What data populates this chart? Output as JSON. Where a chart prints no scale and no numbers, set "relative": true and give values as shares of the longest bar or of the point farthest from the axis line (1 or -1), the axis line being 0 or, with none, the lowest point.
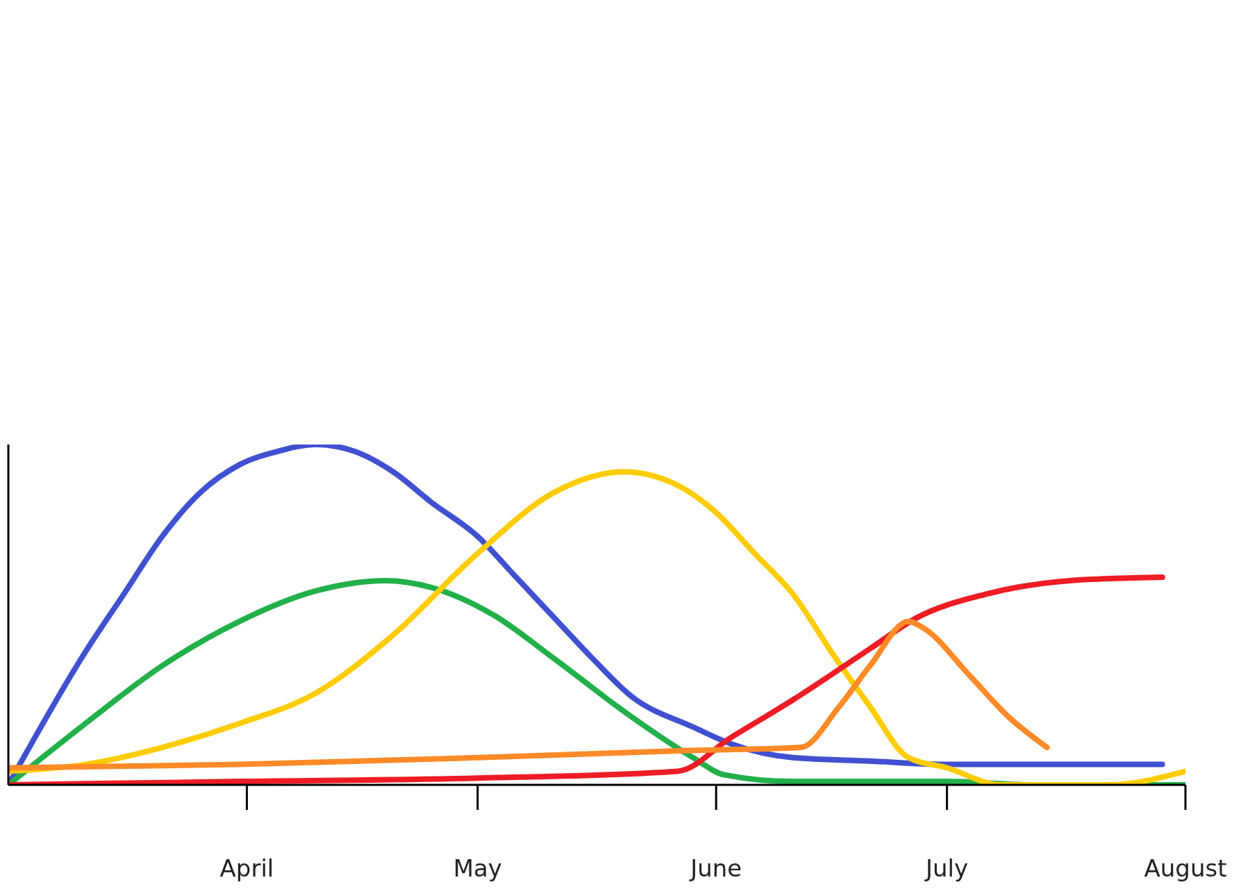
{
  "chart_data": {
    "type": "line",
    "relative": true,
    "xlim": [
      "--03-01",
      "--08-01"
    ],
    "xticks": [
      {
        "value": "--04-01",
        "label": "April"
      },
      {
        "value": "--05-01",
        "label": "May"
      },
      {
        "value": "--06-01",
        "label": "June"
      },
      {
        "value": "--07-01",
        "label": "July"
      },
      {
        "value": "--08-01",
        "label": "August"
      }
    ],
    "marker": "none",
    "line_style": "solid",
    "series": [
      {
        "color": "#4050d0",
        "x": [
          "--03-01",
          "--03-11",
          "--03-16",
          "--03-21",
          "--03-26",
          "--03-31",
          "--04-05",
          "--04-10",
          "--04-15",
          "--04-20",
          "--04-25",
          "--05-01",
          "--05-06",
          "--05-11",
          "--05-16",
          "--05-21",
          "--05-29",
          "--06-03",
          "--06-11",
          "--06-21",
          "--07-01",
          "--07-29"
        ],
        "values": [
          0,
          0.39,
          0.56,
          0.73,
          0.86,
          0.94,
          0.98,
          1.0,
          0.98,
          0.92,
          0.83,
          0.73,
          0.61,
          0.49,
          0.37,
          0.26,
          0.17,
          0.12,
          0.08,
          0.07,
          0.06,
          0.06
        ]
      },
      {
        "color": "#22b04a",
        "x": [
          "--03-01",
          "--03-11",
          "--03-21",
          "--03-31",
          "--04-10",
          "--04-19",
          "--04-25",
          "--05-03",
          "--05-11",
          "--05-21",
          "--05-29",
          "--06-02",
          "--06-11",
          "--07-01",
          "--07-12",
          "--08-01"
        ],
        "values": [
          0,
          0.18,
          0.35,
          0.48,
          0.57,
          0.6,
          0.58,
          0.5,
          0.37,
          0.2,
          0.08,
          0.03,
          0.01,
          0.01,
          0,
          0
        ]
      },
      {
        "color": "#ffcc00",
        "x": [
          "--03-01",
          "--03-11",
          "--03-21",
          "--03-31",
          "--04-10",
          "--04-20",
          "--05-01",
          "--05-11",
          "--05-20",
          "--05-27",
          "--06-01",
          "--06-06",
          "--06-11",
          "--06-16",
          "--06-21",
          "--06-26",
          "--07-01",
          "--07-08",
          "--07-22",
          "--08-01"
        ],
        "values": [
          0.04,
          0.06,
          0.11,
          0.18,
          0.27,
          0.44,
          0.68,
          0.86,
          0.92,
          0.88,
          0.8,
          0.68,
          0.56,
          0.39,
          0.23,
          0.08,
          0.05,
          0,
          0,
          0.04
        ]
      },
      {
        "color": "#ee1c24",
        "x": [
          "--03-01",
          "--03-31",
          "--05-01",
          "--05-27",
          "--06-03",
          "--06-11",
          "--06-21",
          "--06-27",
          "--07-06",
          "--07-17",
          "--07-29"
        ],
        "values": [
          0,
          0.01,
          0.02,
          0.04,
          0.14,
          0.25,
          0.4,
          0.49,
          0.56,
          0.6,
          0.61
        ]
      },
      {
        "color": "#ff8a28",
        "x": [
          "--03-01",
          "--03-31",
          "--05-01",
          "--05-27",
          "--06-12",
          "--06-17",
          "--06-21",
          "--06-26",
          "--06-28",
          "--07-04",
          "--07-09",
          "--07-14"
        ],
        "values": [
          0.05,
          0.06,
          0.08,
          0.1,
          0.11,
          0.23,
          0.35,
          0.48,
          0.46,
          0.32,
          0.2,
          0.11
        ]
      }
    ]
  }
}
